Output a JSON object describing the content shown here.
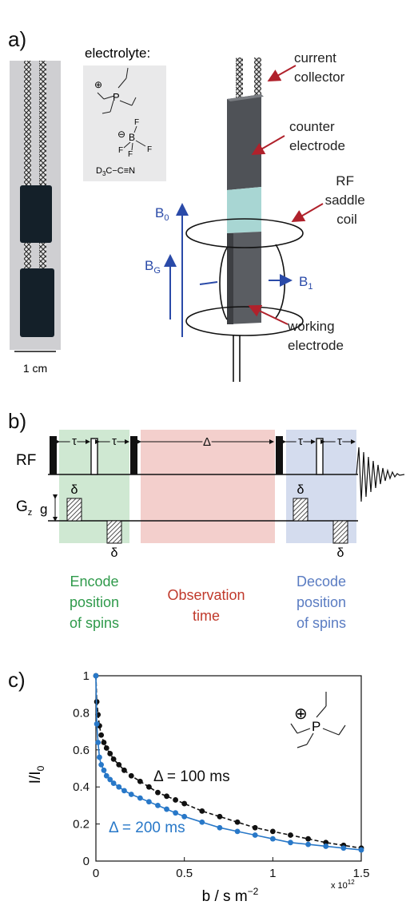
{
  "panel_a": {
    "label": "a)",
    "scale_bar": "1 cm",
    "electrolyte_label": "electrolyte:",
    "cation_charge": "⊕",
    "cation_atom": "P",
    "anion_charge": "⊖",
    "anion_center": "B",
    "anion_f": "F",
    "solvent_prefix": "D",
    "solvent_sub": "3",
    "solvent_suffix": "C−C≡N",
    "current_collector": [
      "current",
      "collector"
    ],
    "counter_electrode": [
      "counter",
      "electrode"
    ],
    "rf_coil": [
      "RF",
      "saddle",
      "coil"
    ],
    "working_electrode": [
      "working",
      "electrode"
    ],
    "b0": "B",
    "b0_sub": "0",
    "bg": "B",
    "bg_sub": "G",
    "b1": "B",
    "b1_sub": "1"
  },
  "panel_b": {
    "label": "b)",
    "rf": "RF",
    "gz": "G",
    "gz_sub": "z",
    "tau": "τ",
    "delta_big": "Δ",
    "delta_small": "δ",
    "g": "g",
    "encode": [
      "Encode",
      "position",
      "of spins"
    ],
    "observe": [
      "Observation",
      "time"
    ],
    "decode": [
      "Decode",
      "position",
      "of spins"
    ],
    "colors": {
      "encode": "#cfe8d2",
      "observe": "#f3cfcc",
      "decode": "#d4dcee",
      "encode_text": "#2f9a4b",
      "observe_text": "#c0392b",
      "decode_text": "#5a7cc2"
    }
  },
  "panel_c": {
    "label": "c)",
    "cation_charge": "⊕",
    "cation_atom": "P",
    "ylabel": "I/I",
    "ylabel_sub": "0",
    "xlabel": "b / s m",
    "xlabel_sup": "−2",
    "x_multiplier": "x 10",
    "x_multiplier_sup": "12",
    "series_100_label": "Δ = 100 ms",
    "series_200_label": "Δ = 200 ms"
  },
  "chart_data": {
    "type": "scatter",
    "xlim": [
      0,
      1.5
    ],
    "ylim": [
      0,
      1
    ],
    "xticks": [
      "0",
      "0.5",
      "1",
      "1.5"
    ],
    "yticks": [
      "0",
      "0.2",
      "0.4",
      "0.6",
      "0.8",
      "1"
    ],
    "series": [
      {
        "name": "Δ = 100 ms",
        "color": "#111111",
        "x": [
          0,
          0.005,
          0.012,
          0.02,
          0.03,
          0.045,
          0.06,
          0.08,
          0.1,
          0.13,
          0.16,
          0.2,
          0.25,
          0.3,
          0.35,
          0.4,
          0.45,
          0.5,
          0.6,
          0.7,
          0.8,
          0.9,
          1.0,
          1.1,
          1.2,
          1.3,
          1.4,
          1.5
        ],
        "y": [
          1.0,
          0.86,
          0.79,
          0.73,
          0.68,
          0.64,
          0.61,
          0.58,
          0.55,
          0.52,
          0.49,
          0.46,
          0.43,
          0.4,
          0.37,
          0.35,
          0.33,
          0.31,
          0.27,
          0.24,
          0.21,
          0.18,
          0.16,
          0.14,
          0.12,
          0.1,
          0.085,
          0.07
        ]
      },
      {
        "name": "Δ = 200 ms",
        "color": "#2878c8",
        "x": [
          0,
          0.005,
          0.012,
          0.02,
          0.03,
          0.045,
          0.06,
          0.08,
          0.1,
          0.13,
          0.16,
          0.2,
          0.25,
          0.3,
          0.35,
          0.4,
          0.45,
          0.5,
          0.6,
          0.7,
          0.8,
          0.9,
          1.0,
          1.1,
          1.2,
          1.3,
          1.4,
          1.5
        ],
        "y": [
          1.0,
          0.74,
          0.64,
          0.56,
          0.52,
          0.49,
          0.46,
          0.44,
          0.42,
          0.4,
          0.38,
          0.36,
          0.34,
          0.32,
          0.3,
          0.28,
          0.26,
          0.24,
          0.21,
          0.18,
          0.16,
          0.14,
          0.12,
          0.1,
          0.09,
          0.08,
          0.07,
          0.06
        ]
      }
    ]
  }
}
